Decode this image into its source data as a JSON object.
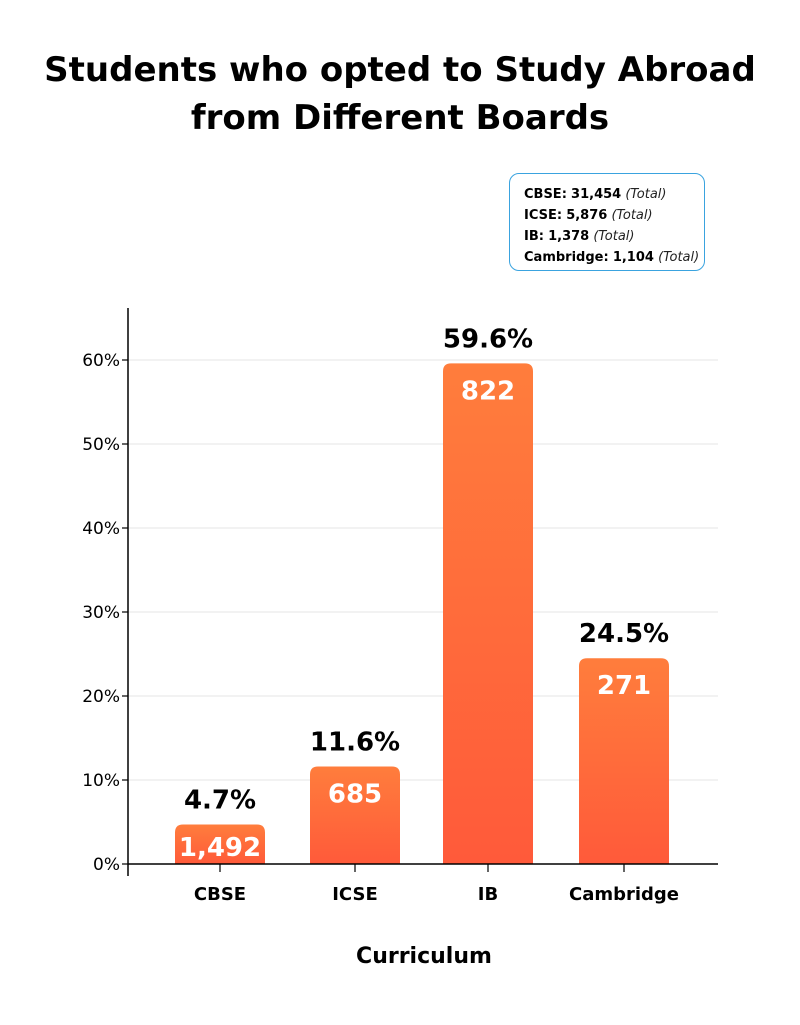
{
  "title_line1": "Students who opted to Study Abroad",
  "title_line2": "from Different Boards",
  "legend": {
    "items": [
      {
        "label": "CBSE:",
        "value": "31,454",
        "note": "(Total)"
      },
      {
        "label": "ICSE:",
        "value": "5,876",
        "note": "(Total)"
      },
      {
        "label": "IB:",
        "value": "1,378",
        "note": "(Total)"
      },
      {
        "label": "Cambridge:",
        "value": "1,104",
        "note": "(Total)"
      }
    ]
  },
  "chart_data": {
    "type": "bar",
    "xlabel": "Curriculum",
    "ylabel": "",
    "categories": [
      "CBSE",
      "ICSE",
      "IB",
      "Cambridge"
    ],
    "values": [
      4.7,
      11.6,
      59.6,
      24.5
    ],
    "percent_labels": [
      "4.7%",
      "11.6%",
      "59.6%",
      "24.5%"
    ],
    "count_labels": [
      "1,492",
      "685",
      "822",
      "271"
    ],
    "yticks": [
      "0%",
      "10%",
      "20%",
      "30%",
      "40%",
      "50%",
      "60%"
    ],
    "ylim": [
      0,
      66
    ],
    "grid": true,
    "colors": {
      "bar_top": "#ff7d3c",
      "bar_bottom": "#ff5a3a",
      "grid": "#e6e6e6",
      "axis": "#000000"
    }
  }
}
